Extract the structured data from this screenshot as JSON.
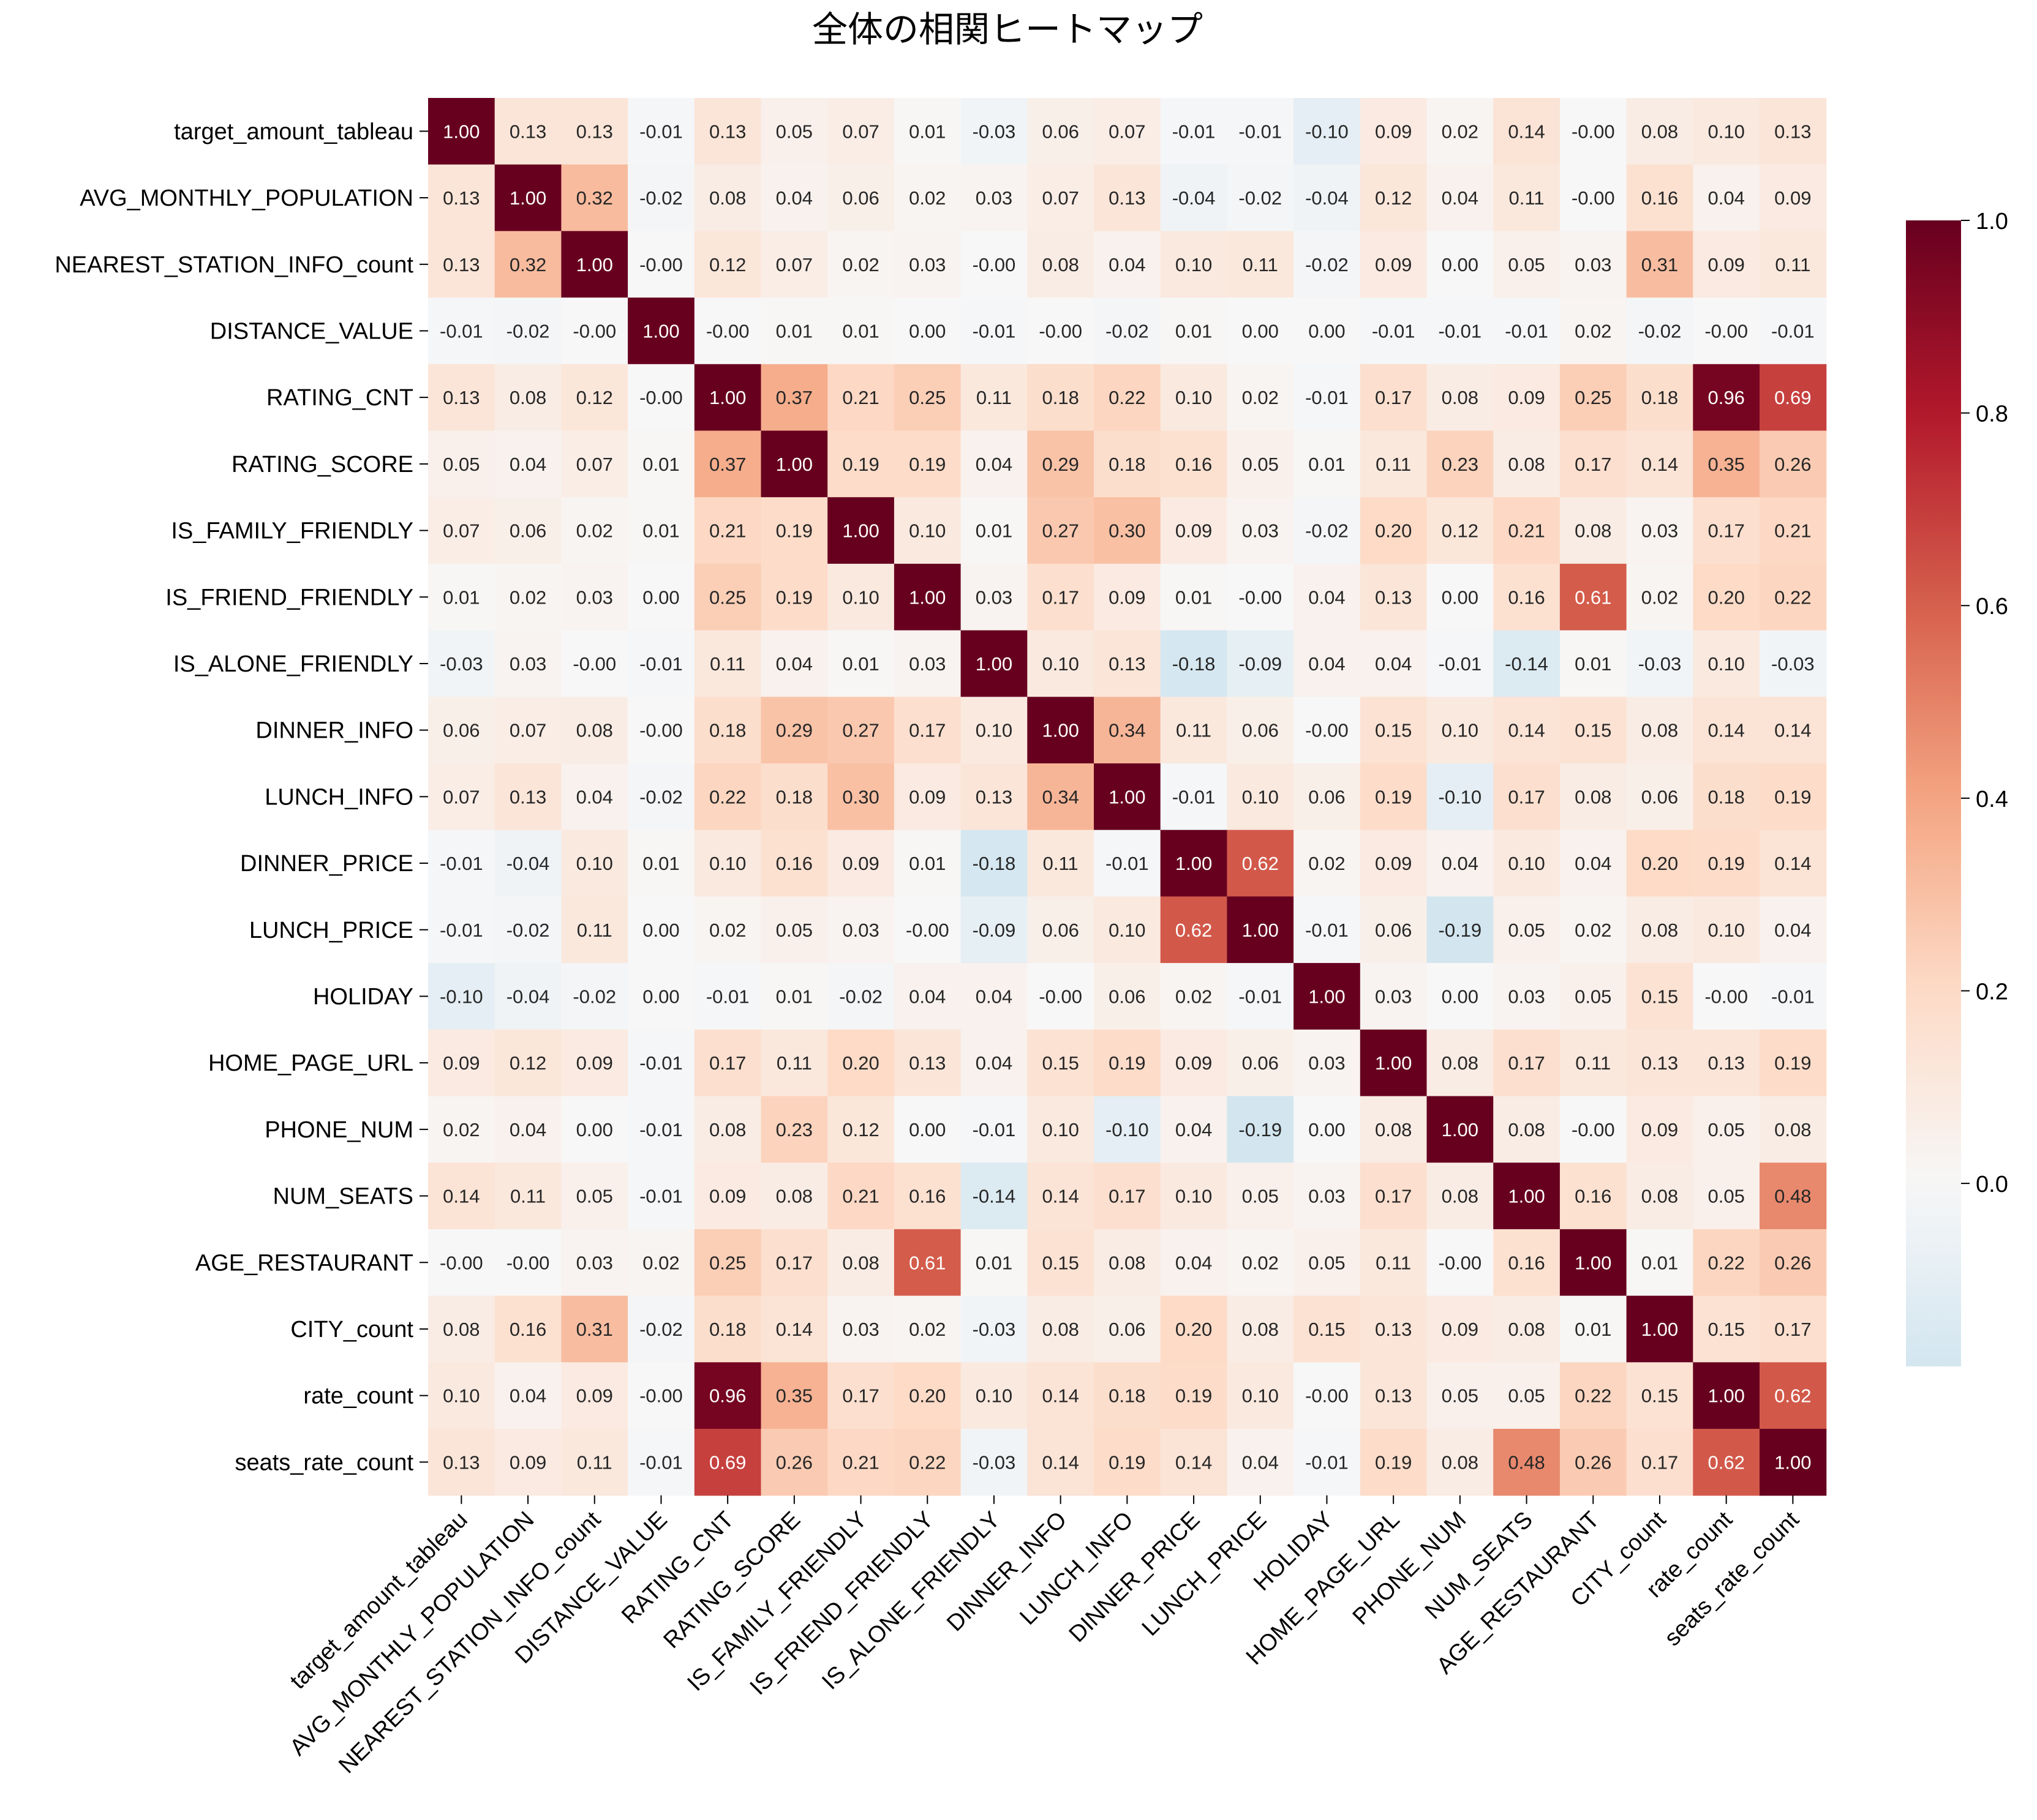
{
  "chart_data": {
    "type": "heatmap",
    "title": "全体の相関ヒートマップ",
    "xlabel": "",
    "ylabel": "",
    "labels": [
      "target_amount_tableau",
      "AVG_MONTHLY_POPULATION",
      "NEAREST_STATION_INFO_count",
      "DISTANCE_VALUE",
      "RATING_CNT",
      "RATING_SCORE",
      "IS_FAMILY_FRIENDLY",
      "IS_FRIEND_FRIENDLY",
      "IS_ALONE_FRIENDLY",
      "DINNER_INFO",
      "LUNCH_INFO",
      "DINNER_PRICE",
      "LUNCH_PRICE",
      "HOLIDAY",
      "HOME_PAGE_URL",
      "PHONE_NUM",
      "NUM_SEATS",
      "AGE_RESTAURANT",
      "CITY_count",
      "rate_count",
      "seats_rate_count"
    ],
    "values": [
      [
        "1.00",
        "0.13",
        "0.13",
        "-0.01",
        "0.13",
        "0.05",
        "0.07",
        "0.01",
        "-0.03",
        "0.06",
        "0.07",
        "-0.01",
        "-0.01",
        "-0.10",
        "0.09",
        "0.02",
        "0.14",
        "-0.00",
        "0.08",
        "0.10",
        "0.13"
      ],
      [
        "0.13",
        "1.00",
        "0.32",
        "-0.02",
        "0.08",
        "0.04",
        "0.06",
        "0.02",
        "0.03",
        "0.07",
        "0.13",
        "-0.04",
        "-0.02",
        "-0.04",
        "0.12",
        "0.04",
        "0.11",
        "-0.00",
        "0.16",
        "0.04",
        "0.09"
      ],
      [
        "0.13",
        "0.32",
        "1.00",
        "-0.00",
        "0.12",
        "0.07",
        "0.02",
        "0.03",
        "-0.00",
        "0.08",
        "0.04",
        "0.10",
        "0.11",
        "-0.02",
        "0.09",
        "0.00",
        "0.05",
        "0.03",
        "0.31",
        "0.09",
        "0.11"
      ],
      [
        "-0.01",
        "-0.02",
        "-0.00",
        "1.00",
        "-0.00",
        "0.01",
        "0.01",
        "0.00",
        "-0.01",
        "-0.00",
        "-0.02",
        "0.01",
        "0.00",
        "0.00",
        "-0.01",
        "-0.01",
        "-0.01",
        "0.02",
        "-0.02",
        "-0.00",
        "-0.01"
      ],
      [
        "0.13",
        "0.08",
        "0.12",
        "-0.00",
        "1.00",
        "0.37",
        "0.21",
        "0.25",
        "0.11",
        "0.18",
        "0.22",
        "0.10",
        "0.02",
        "-0.01",
        "0.17",
        "0.08",
        "0.09",
        "0.25",
        "0.18",
        "0.96",
        "0.69"
      ],
      [
        "0.05",
        "0.04",
        "0.07",
        "0.01",
        "0.37",
        "1.00",
        "0.19",
        "0.19",
        "0.04",
        "0.29",
        "0.18",
        "0.16",
        "0.05",
        "0.01",
        "0.11",
        "0.23",
        "0.08",
        "0.17",
        "0.14",
        "0.35",
        "0.26"
      ],
      [
        "0.07",
        "0.06",
        "0.02",
        "0.01",
        "0.21",
        "0.19",
        "1.00",
        "0.10",
        "0.01",
        "0.27",
        "0.30",
        "0.09",
        "0.03",
        "-0.02",
        "0.20",
        "0.12",
        "0.21",
        "0.08",
        "0.03",
        "0.17",
        "0.21"
      ],
      [
        "0.01",
        "0.02",
        "0.03",
        "0.00",
        "0.25",
        "0.19",
        "0.10",
        "1.00",
        "0.03",
        "0.17",
        "0.09",
        "0.01",
        "-0.00",
        "0.04",
        "0.13",
        "0.00",
        "0.16",
        "0.61",
        "0.02",
        "0.20",
        "0.22"
      ],
      [
        "-0.03",
        "0.03",
        "-0.00",
        "-0.01",
        "0.11",
        "0.04",
        "0.01",
        "0.03",
        "1.00",
        "0.10",
        "0.13",
        "-0.18",
        "-0.09",
        "0.04",
        "0.04",
        "-0.01",
        "-0.14",
        "0.01",
        "-0.03",
        "0.10",
        "-0.03"
      ],
      [
        "0.06",
        "0.07",
        "0.08",
        "-0.00",
        "0.18",
        "0.29",
        "0.27",
        "0.17",
        "0.10",
        "1.00",
        "0.34",
        "0.11",
        "0.06",
        "-0.00",
        "0.15",
        "0.10",
        "0.14",
        "0.15",
        "0.08",
        "0.14",
        "0.14"
      ],
      [
        "0.07",
        "0.13",
        "0.04",
        "-0.02",
        "0.22",
        "0.18",
        "0.30",
        "0.09",
        "0.13",
        "0.34",
        "1.00",
        "-0.01",
        "0.10",
        "0.06",
        "0.19",
        "-0.10",
        "0.17",
        "0.08",
        "0.06",
        "0.18",
        "0.19"
      ],
      [
        "-0.01",
        "-0.04",
        "0.10",
        "0.01",
        "0.10",
        "0.16",
        "0.09",
        "0.01",
        "-0.18",
        "0.11",
        "-0.01",
        "1.00",
        "0.62",
        "0.02",
        "0.09",
        "0.04",
        "0.10",
        "0.04",
        "0.20",
        "0.19",
        "0.14"
      ],
      [
        "-0.01",
        "-0.02",
        "0.11",
        "0.00",
        "0.02",
        "0.05",
        "0.03",
        "-0.00",
        "-0.09",
        "0.06",
        "0.10",
        "0.62",
        "1.00",
        "-0.01",
        "0.06",
        "-0.19",
        "0.05",
        "0.02",
        "0.08",
        "0.10",
        "0.04"
      ],
      [
        "-0.10",
        "-0.04",
        "-0.02",
        "0.00",
        "-0.01",
        "0.01",
        "-0.02",
        "0.04",
        "0.04",
        "-0.00",
        "0.06",
        "0.02",
        "-0.01",
        "1.00",
        "0.03",
        "0.00",
        "0.03",
        "0.05",
        "0.15",
        "-0.00",
        "-0.01"
      ],
      [
        "0.09",
        "0.12",
        "0.09",
        "-0.01",
        "0.17",
        "0.11",
        "0.20",
        "0.13",
        "0.04",
        "0.15",
        "0.19",
        "0.09",
        "0.06",
        "0.03",
        "1.00",
        "0.08",
        "0.17",
        "0.11",
        "0.13",
        "0.13",
        "0.19"
      ],
      [
        "0.02",
        "0.04",
        "0.00",
        "-0.01",
        "0.08",
        "0.23",
        "0.12",
        "0.00",
        "-0.01",
        "0.10",
        "-0.10",
        "0.04",
        "-0.19",
        "0.00",
        "0.08",
        "1.00",
        "0.08",
        "-0.00",
        "0.09",
        "0.05",
        "0.08"
      ],
      [
        "0.14",
        "0.11",
        "0.05",
        "-0.01",
        "0.09",
        "0.08",
        "0.21",
        "0.16",
        "-0.14",
        "0.14",
        "0.17",
        "0.10",
        "0.05",
        "0.03",
        "0.17",
        "0.08",
        "1.00",
        "0.16",
        "0.08",
        "0.05",
        "0.48"
      ],
      [
        "-0.00",
        "-0.00",
        "0.03",
        "0.02",
        "0.25",
        "0.17",
        "0.08",
        "0.61",
        "0.01",
        "0.15",
        "0.08",
        "0.04",
        "0.02",
        "0.05",
        "0.11",
        "-0.00",
        "0.16",
        "1.00",
        "0.01",
        "0.22",
        "0.26"
      ],
      [
        "0.08",
        "0.16",
        "0.31",
        "-0.02",
        "0.18",
        "0.14",
        "0.03",
        "0.02",
        "-0.03",
        "0.08",
        "0.06",
        "0.20",
        "0.08",
        "0.15",
        "0.13",
        "0.09",
        "0.08",
        "0.01",
        "1.00",
        "0.15",
        "0.17"
      ],
      [
        "0.10",
        "0.04",
        "0.09",
        "-0.00",
        "0.96",
        "0.35",
        "0.17",
        "0.20",
        "0.10",
        "0.14",
        "0.18",
        "0.19",
        "0.10",
        "-0.00",
        "0.13",
        "0.05",
        "0.05",
        "0.22",
        "0.15",
        "1.00",
        "0.62"
      ],
      [
        "0.13",
        "0.09",
        "0.11",
        "-0.01",
        "0.69",
        "0.26",
        "0.21",
        "0.22",
        "-0.03",
        "0.14",
        "0.19",
        "0.14",
        "0.04",
        "-0.01",
        "0.19",
        "0.08",
        "0.48",
        "0.26",
        "0.17",
        "0.62",
        "1.00"
      ]
    ],
    "colormap": "RdBu_r",
    "center": 0.0,
    "vmin": -0.19,
    "vmax": 1.0,
    "colorbar_ticks": [
      "0.0",
      "0.2",
      "0.4",
      "0.6",
      "0.8",
      "1.0"
    ]
  }
}
